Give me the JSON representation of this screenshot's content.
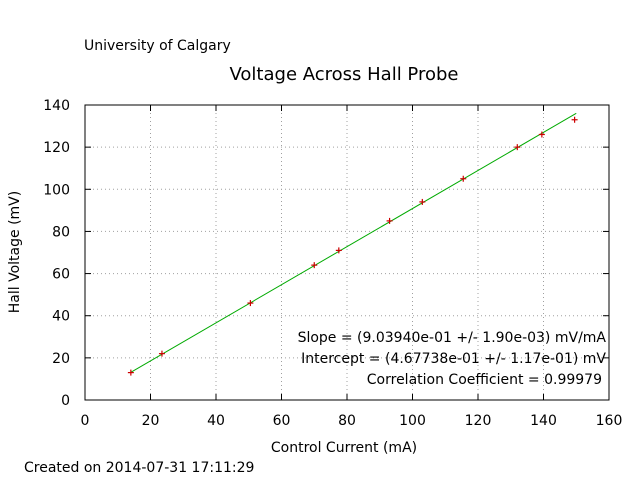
{
  "header": {
    "institution": "University of Calgary"
  },
  "footer": {
    "created": "Created on 2014-07-31 17:11:29"
  },
  "annotations": {
    "slope": "Slope = (9.03940e-01 +/- 1.90e-03) mV/mA",
    "intercept": "Intercept = (4.67738e-01 +/- 1.17e-01) mV",
    "correlation": "Correlation Coefficient = 0.99979"
  },
  "colors": {
    "points": "#cc0000",
    "fit": "#00aa00",
    "grid": "#a0a0a0",
    "axes": "#000000"
  },
  "chart_data": {
    "type": "scatter",
    "title": "Voltage Across Hall Probe",
    "xlabel": "Control Current (mA)",
    "ylabel": "Hall Voltage (mV)",
    "xlim": [
      0,
      160
    ],
    "ylim": [
      0,
      140
    ],
    "xticks": [
      0,
      20,
      40,
      60,
      80,
      100,
      120,
      140,
      160
    ],
    "yticks": [
      0,
      20,
      40,
      60,
      80,
      100,
      120,
      140
    ],
    "grid": true,
    "series": [
      {
        "marker": "plus",
        "x": [
          14,
          23.5,
          50.5,
          70,
          77.5,
          93,
          103,
          115.5,
          132,
          139.5,
          149.5
        ],
        "y": [
          13,
          22,
          46,
          64,
          71,
          85,
          94,
          105,
          120,
          126,
          133
        ]
      }
    ],
    "fit": {
      "slope": 0.90394,
      "intercept": 0.467738,
      "x_range": [
        14,
        150
      ]
    }
  }
}
